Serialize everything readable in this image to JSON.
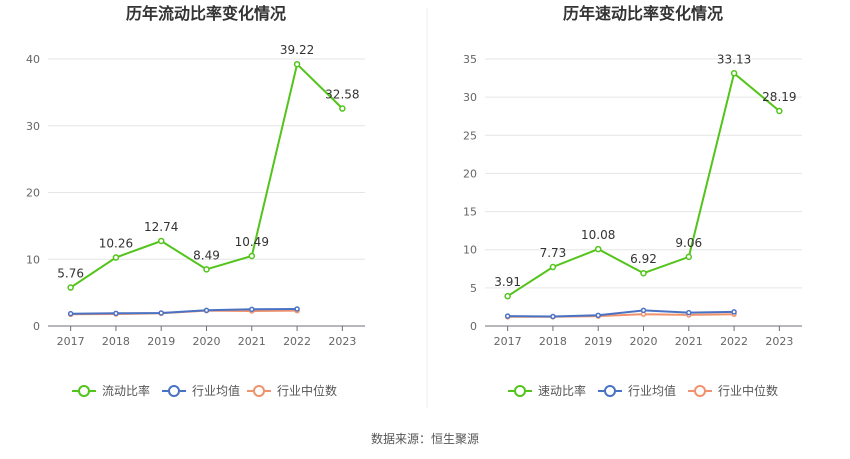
{
  "source": "数据来源：恒生聚源",
  "chart_data": [
    {
      "type": "line",
      "title": "历年流动比率变化情况",
      "categories": [
        "2017",
        "2018",
        "2019",
        "2020",
        "2021",
        "2022",
        "2023"
      ],
      "ylim": [
        0,
        40
      ],
      "yticks": [
        0,
        10,
        20,
        30,
        40
      ],
      "grid": true,
      "legend_position": "bottom",
      "series": [
        {
          "name": "流动比率",
          "color": "#52c41a",
          "values": [
            5.76,
            10.26,
            12.74,
            8.49,
            10.49,
            39.22,
            32.58
          ],
          "labels": [
            "5.76",
            "10.26",
            "12.74",
            "8.49",
            "10.49",
            "39.22",
            "32.58"
          ]
        },
        {
          "name": "行业均值",
          "color": "#4a72c4",
          "values": [
            1.85,
            1.9,
            1.95,
            2.35,
            2.5,
            2.55,
            null
          ]
        },
        {
          "name": "行业中位数",
          "color": "#f0926b",
          "values": [
            1.75,
            1.8,
            1.9,
            2.3,
            2.25,
            2.3,
            null
          ]
        }
      ]
    },
    {
      "type": "line",
      "title": "历年速动比率变化情况",
      "categories": [
        "2017",
        "2018",
        "2019",
        "2020",
        "2021",
        "2022",
        "2023"
      ],
      "ylim": [
        0,
        35
      ],
      "yticks": [
        0,
        5,
        10,
        15,
        20,
        25,
        30,
        35
      ],
      "grid": true,
      "legend_position": "bottom",
      "series": [
        {
          "name": "速动比率",
          "color": "#52c41a",
          "values": [
            3.91,
            7.73,
            10.08,
            6.92,
            9.06,
            33.13,
            28.19
          ],
          "labels": [
            "3.91",
            "7.73",
            "10.08",
            "6.92",
            "9.06",
            "33.13",
            "28.19"
          ]
        },
        {
          "name": "行业均值",
          "color": "#4a72c4",
          "values": [
            1.3,
            1.25,
            1.4,
            2.05,
            1.75,
            1.85,
            null
          ]
        },
        {
          "name": "行业中位数",
          "color": "#f0926b",
          "values": [
            1.2,
            1.2,
            1.3,
            1.55,
            1.45,
            1.55,
            null
          ]
        }
      ]
    }
  ]
}
